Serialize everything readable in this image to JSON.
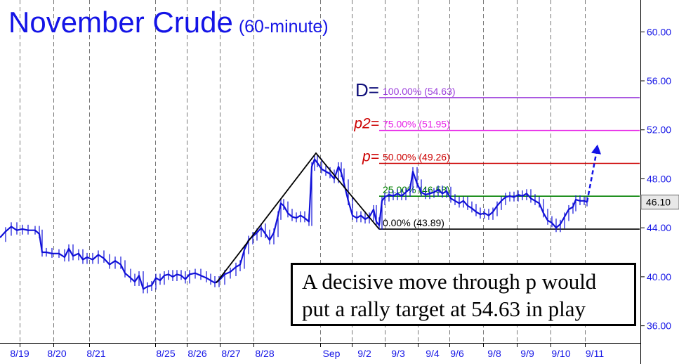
{
  "title": {
    "main": "November Crude",
    "sub": "(60-minute)"
  },
  "note": {
    "line1": "A decisive move through p would",
    "line2": "put a rally target at 54.63 in play"
  },
  "colors": {
    "text": "#1414e6",
    "price": "#1010d8",
    "grid": "#777777",
    "fib_100": "#9b3bdb",
    "fib_75": "#e61ee6",
    "fib_50": "#cc0000",
    "fib_25": "#008000",
    "fib_0": "#000000",
    "label_D": "#10107a",
    "label_p": "#cc0000"
  },
  "chart_data": {
    "type": "line",
    "title": "November Crude (60-minute)",
    "xlabel": "",
    "ylabel": "",
    "x_ticks": [
      "8/19",
      "8/20",
      "8/21",
      "8/25",
      "8/26",
      "8/27",
      "8/28",
      "Sep",
      "9/2",
      "9/3",
      "9/4",
      "9/6",
      "9/8",
      "9/9",
      "9/10",
      "9/11"
    ],
    "y_ticks": [
      "36.00",
      "40.00",
      "44.00",
      "48.00",
      "52.00",
      "56.00",
      "60.00"
    ],
    "ylim": [
      34.6,
      62.6
    ],
    "last_price": "46.10",
    "series": [
      {
        "name": "",
        "points": [
          [
            0,
            43.2
          ],
          [
            8,
            43.7
          ],
          [
            16,
            44.1
          ],
          [
            24,
            43.8
          ],
          [
            32,
            43.9
          ],
          [
            40,
            43.8
          ],
          [
            50,
            43.8
          ],
          [
            56,
            43.5
          ],
          [
            60,
            42.0
          ],
          [
            66,
            42.0
          ],
          [
            74,
            41.9
          ],
          [
            84,
            41.9
          ],
          [
            92,
            41.6
          ],
          [
            98,
            42.3
          ],
          [
            104,
            41.7
          ],
          [
            112,
            41.9
          ],
          [
            118,
            41.4
          ],
          [
            124,
            41.6
          ],
          [
            132,
            41.4
          ],
          [
            140,
            41.8
          ],
          [
            148,
            41.5
          ],
          [
            156,
            41.0
          ],
          [
            164,
            41.3
          ],
          [
            172,
            41.0
          ],
          [
            178,
            40.3
          ],
          [
            186,
            39.9
          ],
          [
            192,
            39.6
          ],
          [
            198,
            40.1
          ],
          [
            204,
            39.0
          ],
          [
            210,
            39.2
          ],
          [
            216,
            39.3
          ],
          [
            222,
            39.9
          ],
          [
            228,
            39.7
          ],
          [
            234,
            40.1
          ],
          [
            240,
            40.2
          ],
          [
            246,
            40.0
          ],
          [
            252,
            40.2
          ],
          [
            258,
            40.1
          ],
          [
            264,
            39.8
          ],
          [
            270,
            40.2
          ],
          [
            278,
            40.3
          ],
          [
            286,
            40.1
          ],
          [
            294,
            39.9
          ],
          [
            300,
            39.7
          ],
          [
            306,
            39.5
          ],
          [
            312,
            39.7
          ],
          [
            320,
            40.2
          ],
          [
            328,
            40.4
          ],
          [
            336,
            40.8
          ],
          [
            342,
            41.0
          ],
          [
            348,
            42.2
          ],
          [
            354,
            43.0
          ],
          [
            360,
            43.3
          ],
          [
            366,
            43.6
          ],
          [
            372,
            44.0
          ],
          [
            378,
            43.5
          ],
          [
            384,
            43.0
          ],
          [
            390,
            43.6
          ],
          [
            396,
            45.0
          ],
          [
            400,
            46.0
          ],
          [
            404,
            45.8
          ],
          [
            410,
            45.2
          ],
          [
            416,
            44.9
          ],
          [
            422,
            44.8
          ],
          [
            428,
            45.0
          ],
          [
            434,
            44.8
          ],
          [
            440,
            44.5
          ],
          [
            444,
            49.0
          ],
          [
            448,
            49.6
          ],
          [
            452,
            49.3
          ],
          [
            458,
            48.8
          ],
          [
            464,
            48.6
          ],
          [
            470,
            48.4
          ],
          [
            476,
            48.0
          ],
          [
            482,
            49.0
          ],
          [
            486,
            48.5
          ],
          [
            490,
            47.6
          ],
          [
            496,
            46.2
          ],
          [
            502,
            45.0
          ],
          [
            508,
            44.8
          ],
          [
            514,
            45.0
          ],
          [
            520,
            44.7
          ],
          [
            526,
            44.9
          ],
          [
            532,
            45.5
          ],
          [
            536,
            44.5
          ],
          [
            540,
            44.2
          ],
          [
            544,
            46.2
          ],
          [
            548,
            46.5
          ],
          [
            554,
            46.7
          ],
          [
            560,
            46.6
          ],
          [
            566,
            46.8
          ],
          [
            572,
            46.6
          ],
          [
            578,
            46.9
          ],
          [
            584,
            47.2
          ],
          [
            588,
            48.6
          ],
          [
            594,
            47.6
          ],
          [
            600,
            46.9
          ],
          [
            606,
            46.7
          ],
          [
            612,
            46.8
          ],
          [
            618,
            46.9
          ],
          [
            624,
            47.1
          ],
          [
            630,
            46.8
          ],
          [
            636,
            47.0
          ],
          [
            642,
            46.4
          ],
          [
            648,
            46.2
          ],
          [
            654,
            46.0
          ],
          [
            660,
            46.2
          ],
          [
            666,
            45.8
          ],
          [
            672,
            45.6
          ],
          [
            678,
            45.3
          ],
          [
            684,
            45.1
          ],
          [
            690,
            45.2
          ],
          [
            696,
            45.0
          ],
          [
            702,
            45.3
          ],
          [
            708,
            45.8
          ],
          [
            714,
            46.2
          ],
          [
            720,
            46.5
          ],
          [
            726,
            46.6
          ],
          [
            732,
            46.5
          ],
          [
            738,
            46.7
          ],
          [
            744,
            46.6
          ],
          [
            750,
            46.8
          ],
          [
            756,
            46.4
          ],
          [
            762,
            46.2
          ],
          [
            768,
            46.0
          ],
          [
            774,
            45.2
          ],
          [
            780,
            44.6
          ],
          [
            786,
            44.4
          ],
          [
            792,
            44.0
          ],
          [
            798,
            44.3
          ],
          [
            804,
            44.9
          ],
          [
            810,
            45.5
          ],
          [
            816,
            45.7
          ],
          [
            820,
            46.3
          ],
          [
            826,
            46.2
          ],
          [
            832,
            46.2
          ],
          [
            836,
            46.1
          ]
        ]
      }
    ],
    "pattern_lines": [
      [
        [
          308,
          39.5
        ],
        [
          450,
          50.1
        ],
        [
          540,
          43.89
        ]
      ]
    ],
    "projection": {
      "from": [
        836,
        46.1
      ],
      "to": [
        851,
        50.8
      ]
    },
    "levels": [
      {
        "tag": "D=",
        "label": "100.00% (54.63)",
        "value": 54.63,
        "color": "#9b3bdb",
        "tag_color": "#10107a"
      },
      {
        "tag": "p2=",
        "label": "75.00% (51.95)",
        "value": 51.95,
        "color": "#e61ee6",
        "tag_color": "#cc0000"
      },
      {
        "tag": "p=",
        "label": "50.00% (49.26)",
        "value": 49.26,
        "color": "#cc0000",
        "tag_color": "#cc0000"
      },
      {
        "tag": "",
        "label": "25.00% (46.58)",
        "value": 46.58,
        "color": "#008000",
        "tag_color": "#008000"
      },
      {
        "tag": "",
        "label": "0.00% (43.89)",
        "value": 43.89,
        "color": "#000000",
        "tag_color": "#000000"
      }
    ]
  }
}
